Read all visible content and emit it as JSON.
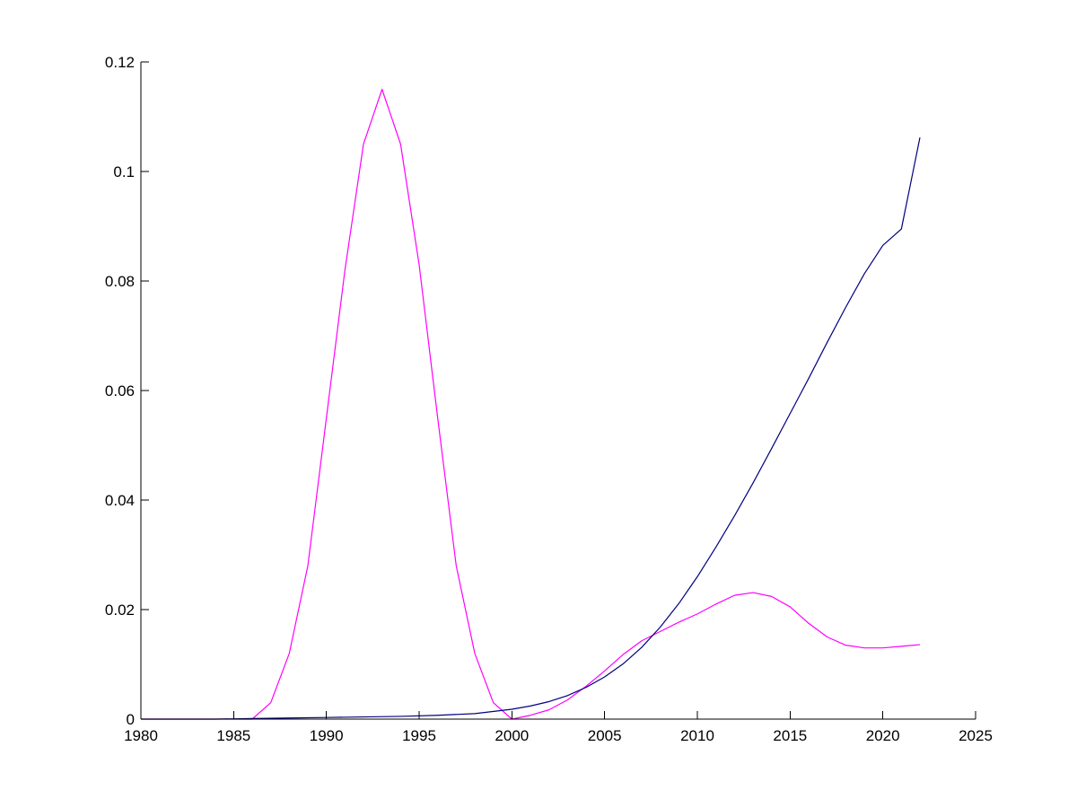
{
  "chart_data": {
    "type": "line",
    "title": "",
    "xlabel": "",
    "ylabel": "",
    "xlim": [
      1980,
      2025
    ],
    "ylim": [
      0,
      0.12
    ],
    "grid": false,
    "x_ticks": [
      "1980",
      "1985",
      "1990",
      "1995",
      "2000",
      "2005",
      "2010",
      "2015",
      "2020",
      "2025"
    ],
    "y_ticks": [
      "0",
      "0.02",
      "0.04",
      "0.06",
      "0.08",
      "0.1",
      "0.12"
    ],
    "series": [
      {
        "color": "#ff00ff",
        "x": [
          1980,
          1981,
          1982,
          1983,
          1984,
          1985,
          1986,
          1987,
          1988,
          1989,
          1990,
          1991,
          1992,
          1993,
          1994,
          1995,
          1996,
          1997,
          1998,
          1999,
          2000,
          2001,
          2002,
          2003,
          2004,
          2005,
          2006,
          2007,
          2008,
          2009,
          2010,
          2011,
          2012,
          2013,
          2014,
          2015,
          2016,
          2017,
          2018,
          2019,
          2020,
          2021,
          2022
        ],
        "y": [
          0,
          0,
          0,
          0,
          0,
          0,
          0,
          0.003,
          0.012,
          0.028,
          0.055,
          0.082,
          0.105,
          0.115,
          0.105,
          0.083,
          0.055,
          0.028,
          0.012,
          0.003,
          0,
          0.0007,
          0.0017,
          0.0035,
          0.006,
          0.0088,
          0.0118,
          0.0143,
          0.016,
          0.0177,
          0.0192,
          0.021,
          0.0226,
          0.0231,
          0.0224,
          0.0205,
          0.0175,
          0.015,
          0.0135,
          0.013,
          0.013,
          0.0133,
          0.0136
        ]
      },
      {
        "color": "#00007f",
        "x": [
          1980,
          1982,
          1984,
          1986,
          1988,
          1990,
          1992,
          1994,
          1996,
          1998,
          2000,
          2001,
          2002,
          2003,
          2004,
          2005,
          2006,
          2007,
          2008,
          2009,
          2010,
          2011,
          2012,
          2013,
          2014,
          2015,
          2016,
          2017,
          2018,
          2019,
          2020,
          2021,
          2022
        ],
        "y": [
          0,
          0,
          0,
          0.0001,
          0.0002,
          0.0003,
          0.0004,
          0.0005,
          0.0007,
          0.001,
          0.0018,
          0.0024,
          0.0032,
          0.0043,
          0.0058,
          0.0077,
          0.0101,
          0.0131,
          0.0168,
          0.0211,
          0.026,
          0.0314,
          0.0371,
          0.0431,
          0.0494,
          0.0558,
          0.0622,
          0.0688,
          0.0752,
          0.0813,
          0.0865,
          0.0895,
          0.1062
        ]
      }
    ]
  }
}
